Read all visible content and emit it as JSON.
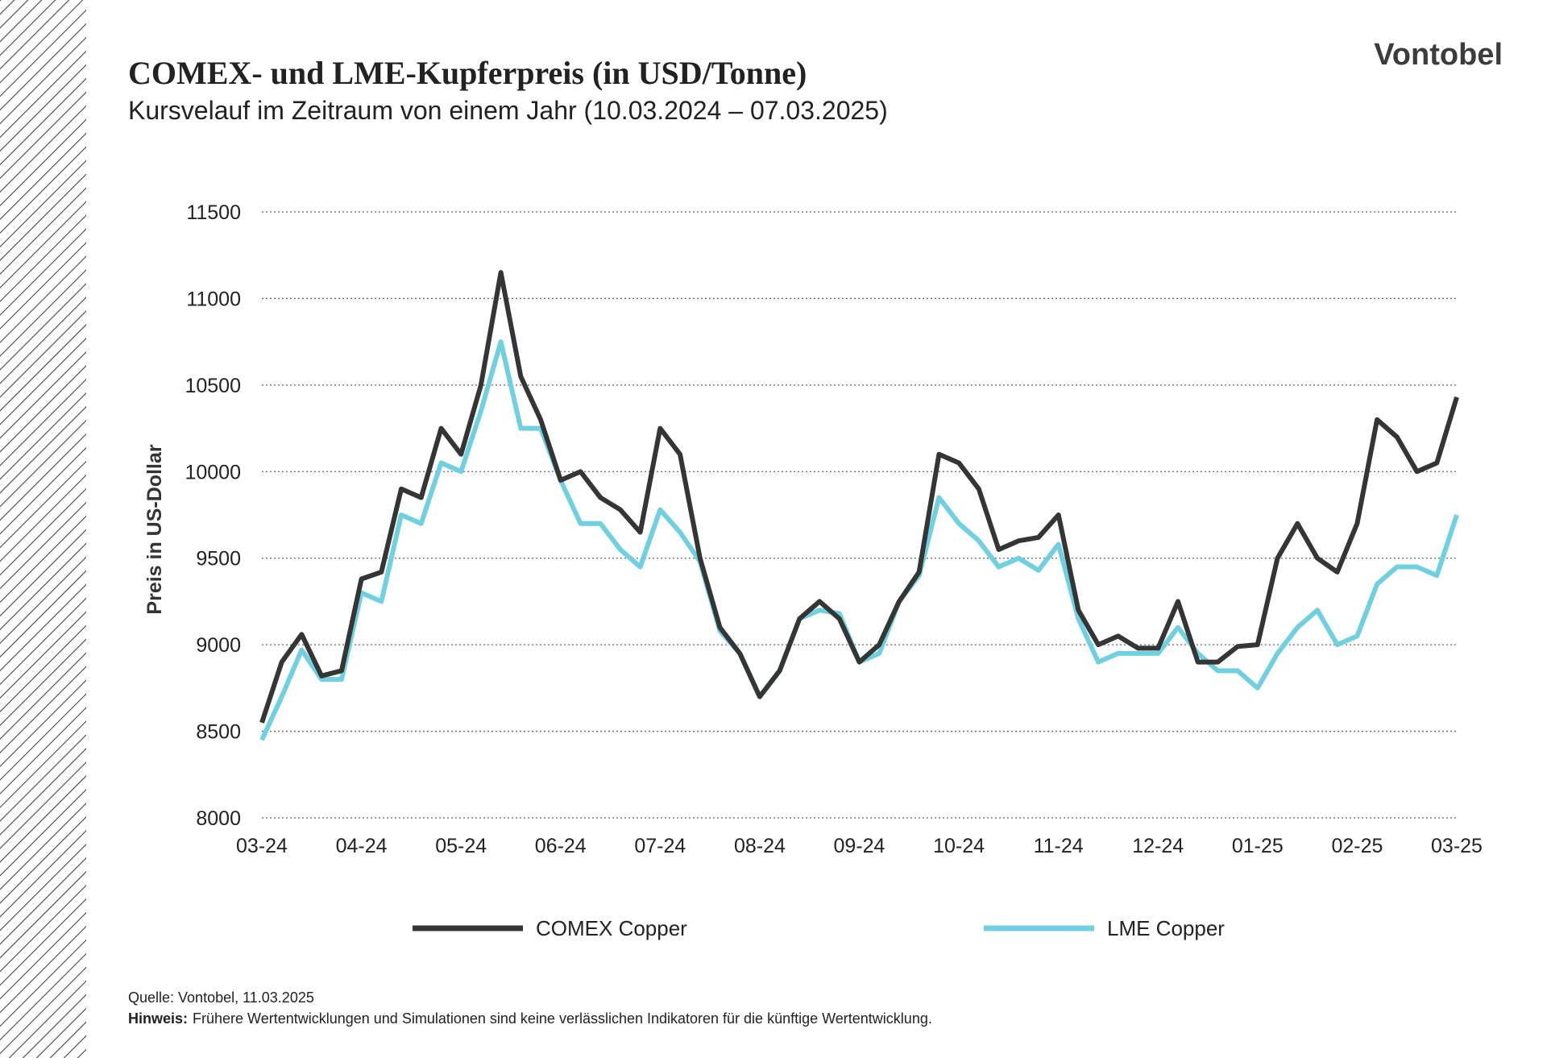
{
  "logo": "Vontobel",
  "chart_data": {
    "type": "line",
    "title": "COMEX- und LME-Kupferpreis (in USD/Tonne)",
    "subtitle": "Kursvelauf im Zeitraum von einem Jahr (10.03.2024 – 07.03.2025)",
    "y_label": "Preis in US-Dollar",
    "categories": [
      "03-24",
      null,
      null,
      null,
      null,
      "04-24",
      null,
      null,
      null,
      null,
      "05-24",
      null,
      null,
      null,
      null,
      "06-24",
      null,
      null,
      null,
      null,
      "07-24",
      null,
      null,
      null,
      null,
      "08-24",
      null,
      null,
      null,
      null,
      "09-24",
      null,
      null,
      null,
      null,
      "10-24",
      null,
      null,
      null,
      null,
      "11-24",
      null,
      null,
      null,
      null,
      "12-24",
      null,
      null,
      null,
      null,
      "01-25",
      null,
      null,
      null,
      null,
      "02-25",
      null,
      null,
      null,
      null,
      "03-25"
    ],
    "series": [
      {
        "name": "COMEX Copper",
        "color": "#333634",
        "values": [
          8550,
          8900,
          9060,
          8820,
          8850,
          9380,
          9420,
          9900,
          9850,
          10250,
          10100,
          10500,
          11150,
          10550,
          10300,
          9950,
          10000,
          9850,
          9780,
          9650,
          10250,
          10100,
          9500,
          9100,
          8950,
          8700,
          8850,
          9150,
          9250,
          9150,
          8900,
          9000,
          9250,
          9420,
          10100,
          10050,
          9900,
          9550,
          9600,
          9620,
          9750,
          9200,
          9000,
          9050,
          8980,
          8980,
          9250,
          8900,
          8900,
          8990,
          9000,
          9500,
          9700,
          9500,
          9420,
          9700,
          10300,
          10200,
          10000,
          10050,
          10430
        ]
      },
      {
        "name": "LME Copper",
        "color": "#6fd0e0",
        "values": [
          8450,
          8700,
          8970,
          8800,
          8800,
          9300,
          9250,
          9750,
          9700,
          10050,
          10000,
          10350,
          10750,
          10250,
          10250,
          9950,
          9700,
          9700,
          9550,
          9450,
          9780,
          9650,
          9480,
          9080,
          8950,
          8700,
          8850,
          9150,
          9200,
          9180,
          8900,
          8950,
          9250,
          9400,
          9850,
          9700,
          9600,
          9450,
          9500,
          9430,
          9580,
          9150,
          8900,
          8950,
          8950,
          8950,
          9100,
          8950,
          8850,
          8850,
          8750,
          8950,
          9100,
          9200,
          9000,
          9050,
          9350,
          9450,
          9450,
          9400,
          9750
        ]
      }
    ],
    "ylim": [
      8000,
      11500
    ],
    "yticks": [
      8000,
      8500,
      9000,
      9500,
      10000,
      10500,
      11000,
      11500
    ],
    "grid": true
  },
  "footer": {
    "source": "Quelle:  Vontobel,  11.03.2025",
    "note_label": "Hinweis:",
    "note": "Frühere Wertentwicklungen und Simulationen sind keine verlässlichen Indikatoren für die künftige Wertentwicklung."
  }
}
